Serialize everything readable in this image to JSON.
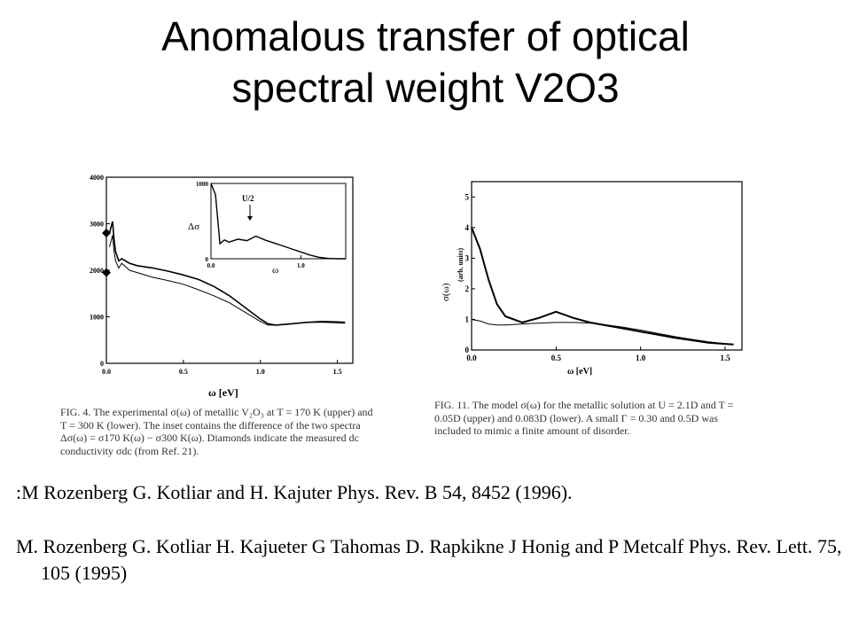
{
  "slide": {
    "title_line1": "Anomalous transfer of optical",
    "title_line2": "spectral weight V2O3",
    "reference_1": ":M Rozenberg G. Kotliar and H. Kajuter Phys. Rev. B 54, 8452 (1996).",
    "reference_2": "M. Rozenberg G. Kotliar H. Kajueter G Tahomas D. Rapkikne J Honig and P Metcalf Phys. Rev. Lett. 75, 105 (1995)"
  },
  "figure_left": {
    "caption": "FIG. 4. The experimental σ(ω) of metallic V₂O₃ at T = 170 K (upper) and T = 300 K (lower). The inset contains the difference of the two spectra Δσ(ω) = σ170 K(ω) − σ300 K(ω). Diamonds indicate the measured dc conductivity σdc (from Ref. 21).",
    "xlabel": "ω [eV]",
    "inset_ylabel": "Δσ",
    "inset_xlabel": "ω",
    "inset_annotation": "U/2",
    "x_ticks": [
      "0.0",
      "0.5",
      "1.0",
      "1.5"
    ],
    "y_ticks": [
      "0",
      "1000",
      "2000",
      "3000",
      "4000"
    ],
    "inset_x_ticks": [
      "0.0",
      "1.0"
    ],
    "inset_y_ticks": [
      "0",
      "1000"
    ]
  },
  "figure_right": {
    "caption": "FIG. 11. The model σ(ω) for the metallic solution at U = 2.1D and T = 0.05D (upper) and 0.083D (lower). A small Γ = 0.30 and 0.5D was included to mimic a finite amount of disorder.",
    "ylabel": "σ(ω)",
    "ylabel_units": "(arb. units)",
    "xlabel": "ω [eV]",
    "x_ticks": [
      "0.0",
      "0.5",
      "1.0",
      "1.5"
    ],
    "y_ticks": [
      "0",
      "1",
      "2",
      "3",
      "4",
      "5"
    ]
  },
  "chart_data": [
    {
      "type": "line",
      "xlabel": "ω [eV]",
      "ylabel": "",
      "xlim": [
        0,
        1.6
      ],
      "ylim": [
        0,
        4000
      ],
      "series": [
        {
          "x": [
            0.02,
            0.04,
            0.05,
            0.06,
            0.08,
            0.1,
            0.15,
            0.2,
            0.3,
            0.4,
            0.5,
            0.6,
            0.7,
            0.8,
            0.9,
            1.0,
            1.05,
            1.1,
            1.2,
            1.3,
            1.4,
            1.5,
            1.55
          ],
          "y": [
            2800,
            3050,
            2650,
            2400,
            2200,
            2250,
            2150,
            2100,
            2050,
            1980,
            1900,
            1800,
            1650,
            1450,
            1200,
            950,
            850,
            820,
            850,
            880,
            900,
            890,
            880
          ]
        },
        {
          "x": [
            0.02,
            0.04,
            0.05,
            0.06,
            0.08,
            0.1,
            0.15,
            0.2,
            0.3,
            0.4,
            0.5,
            0.6,
            0.7,
            0.8,
            0.9,
            1.0,
            1.05,
            1.1,
            1.2,
            1.3,
            1.4,
            1.5,
            1.55
          ],
          "y": [
            2500,
            2750,
            2400,
            2200,
            2050,
            2150,
            2000,
            1950,
            1850,
            1780,
            1700,
            1580,
            1450,
            1300,
            1100,
            900,
            820,
            820,
            850,
            880,
            880,
            870,
            860
          ]
        }
      ],
      "markers": [
        {
          "x": 0.0,
          "y": 2800
        },
        {
          "x": 0.0,
          "y": 1950
        }
      ]
    },
    {
      "type": "line",
      "xlabel": "ω",
      "ylabel": "Δσ",
      "xlim": [
        0,
        1.5
      ],
      "ylim": [
        0,
        1000
      ],
      "annotation": "U/2",
      "series": [
        {
          "x": [
            0.0,
            0.05,
            0.1,
            0.15,
            0.2,
            0.3,
            0.4,
            0.5,
            0.6,
            0.7,
            0.8,
            0.9,
            1.0,
            1.1,
            1.2,
            1.3,
            1.4,
            1.5
          ],
          "y": [
            1000,
            850,
            200,
            250,
            220,
            260,
            240,
            300,
            250,
            210,
            170,
            130,
            90,
            50,
            20,
            5,
            0,
            0
          ]
        }
      ]
    },
    {
      "type": "line",
      "xlabel": "ω [eV]",
      "ylabel": "σ(ω)",
      "xlim": [
        0,
        1.6
      ],
      "ylim": [
        0,
        5.5
      ],
      "series": [
        {
          "x": [
            0.0,
            0.05,
            0.1,
            0.15,
            0.2,
            0.3,
            0.4,
            0.5,
            0.6,
            0.7,
            0.8,
            0.9,
            1.0,
            1.1,
            1.2,
            1.3,
            1.4,
            1.5,
            1.55
          ],
          "y": [
            4.0,
            3.3,
            2.3,
            1.5,
            1.1,
            0.9,
            1.05,
            1.25,
            1.05,
            0.9,
            0.8,
            0.7,
            0.6,
            0.5,
            0.4,
            0.32,
            0.24,
            0.2,
            0.18
          ]
        },
        {
          "x": [
            0.0,
            0.05,
            0.1,
            0.15,
            0.2,
            0.3,
            0.4,
            0.5,
            0.6,
            0.7,
            0.8,
            0.9,
            1.0,
            1.1,
            1.2,
            1.3,
            1.4,
            1.5,
            1.55
          ],
          "y": [
            1.0,
            0.95,
            0.85,
            0.82,
            0.82,
            0.85,
            0.88,
            0.9,
            0.9,
            0.88,
            0.82,
            0.74,
            0.65,
            0.54,
            0.44,
            0.35,
            0.27,
            0.21,
            0.19
          ]
        }
      ]
    }
  ]
}
